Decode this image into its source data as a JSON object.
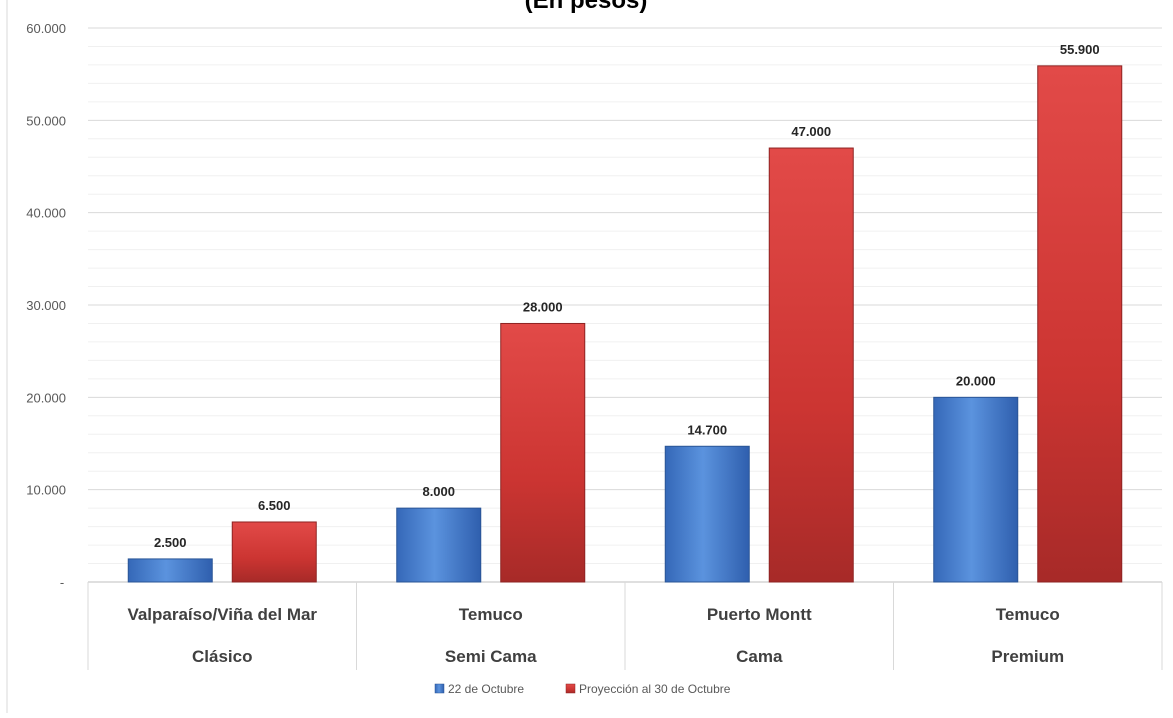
{
  "chart_data": {
    "type": "bar",
    "title": "(En pesos)",
    "categories": [
      [
        "Valparaíso/Viña del Mar",
        "Clásico"
      ],
      [
        "Temuco",
        "Semi Cama"
      ],
      [
        "Puerto Montt",
        "Cama"
      ],
      [
        "Temuco",
        "Premium"
      ]
    ],
    "series": [
      {
        "name": "22 de Octubre",
        "color": "#4a83d2",
        "values": [
          2500,
          8000,
          14700,
          20000
        ],
        "labels": [
          "2.500",
          "8.000",
          "14.700",
          "20.000"
        ]
      },
      {
        "name": "Proyección al 30 de Octubre",
        "color": "#d13a3a",
        "values": [
          6500,
          28000,
          47000,
          55900
        ],
        "labels": [
          "6.500",
          "28.000",
          "47.000",
          "55.900"
        ]
      }
    ],
    "ylim": [
      0,
      60000
    ],
    "yticks": [
      0,
      10000,
      20000,
      30000,
      40000,
      50000,
      60000
    ],
    "ytick_labels": [
      "-",
      "10.000",
      "20.000",
      "30.000",
      "40.000",
      "50.000",
      "60.000"
    ],
    "xlabel": "",
    "ylabel": "",
    "grid": true,
    "legend_position": "bottom"
  }
}
